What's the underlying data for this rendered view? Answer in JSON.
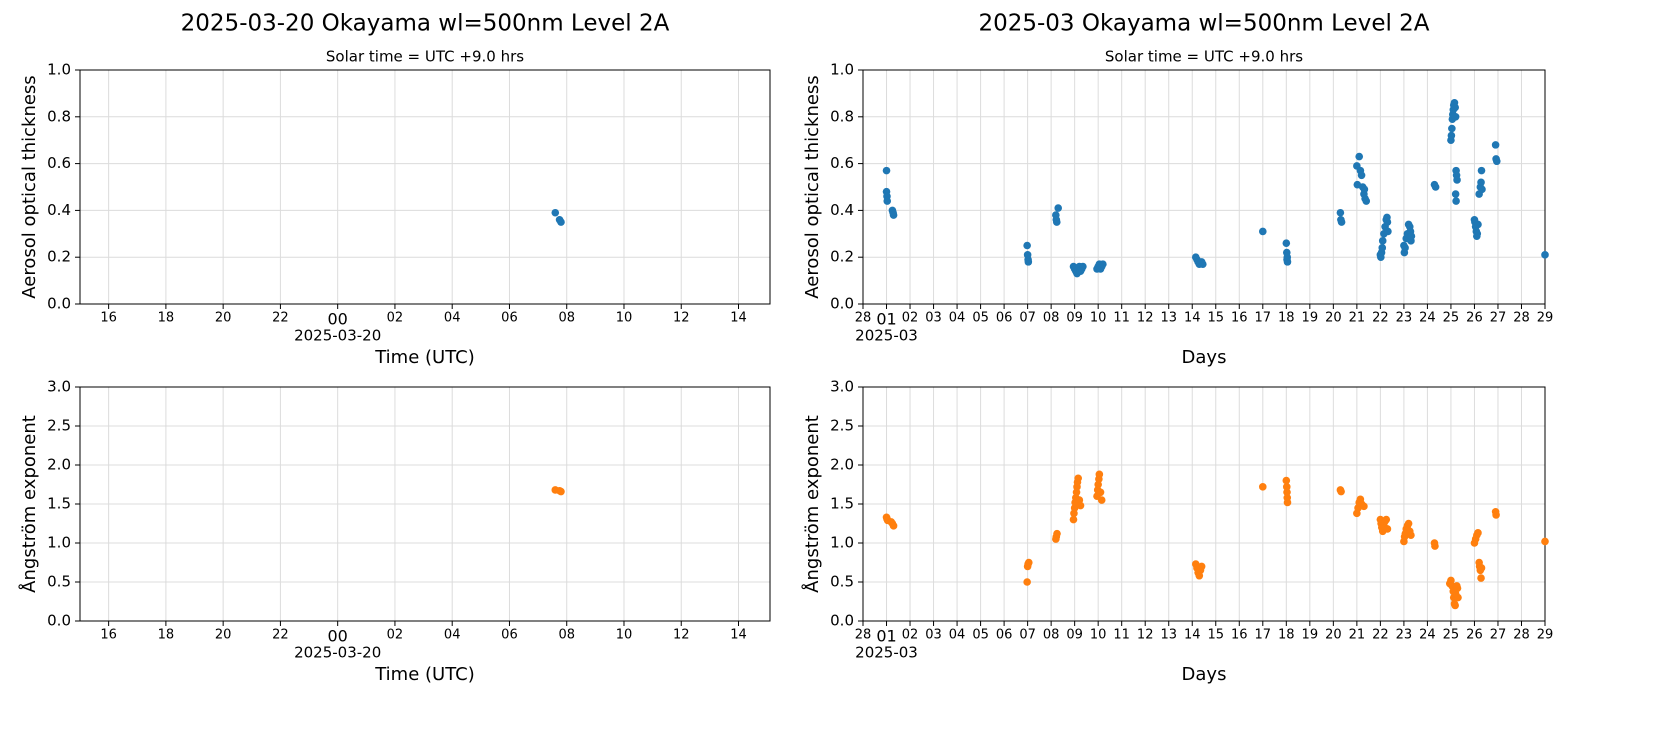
{
  "chart_data": [
    {
      "type": "scatter",
      "title": "2025-03-20  Okayama  wl=500nm  Level 2A",
      "subtitle": "Solar time = UTC +9.0 hrs",
      "ylabel": "Aerosol optical thickness",
      "xlabel": "Time (UTC)",
      "annotation": {
        "text": "2025-03-20",
        "x": 0
      },
      "color": "#1f77b4",
      "grid": true,
      "x": [
        7.6,
        7.75,
        7.8
      ],
      "values": [
        0.39,
        0.36,
        0.35
      ],
      "xlim": [
        -9,
        15.1
      ],
      "ylim": [
        0,
        1
      ],
      "xticks": [
        {
          "value": -8,
          "label": "16"
        },
        {
          "value": -6,
          "label": "18"
        },
        {
          "value": -4,
          "label": "20"
        },
        {
          "value": -2,
          "label": "22"
        },
        {
          "value": 0,
          "label": "00"
        },
        {
          "value": 2,
          "label": "02"
        },
        {
          "value": 4,
          "label": "04"
        },
        {
          "value": 6,
          "label": "06"
        },
        {
          "value": 8,
          "label": "08"
        },
        10,
        12,
        14
      ],
      "yticks": [
        {
          "value": 0,
          "label": "0.0"
        },
        0.2,
        0.4,
        0.6,
        0.8,
        {
          "value": 1,
          "label": "1.0"
        }
      ]
    },
    {
      "type": "scatter",
      "title": "2025-03  Okayama  wl=500nm  Level 2A",
      "subtitle": "Solar time = UTC +9.0 hrs",
      "ylabel": "Aerosol optical thickness",
      "xlabel": "Days",
      "annotation": {
        "text": "2025-03",
        "x": 1
      },
      "color": "#1f77b4",
      "grid": true,
      "x": [
        1.0,
        1.0,
        1.02,
        1.03,
        1.25,
        1.28,
        1.3,
        6.98,
        7.0,
        7.02,
        7.03,
        8.2,
        8.22,
        8.24,
        8.3,
        8.95,
        9.0,
        9.05,
        9.1,
        9.15,
        9.2,
        9.25,
        9.3,
        9.35,
        9.95,
        10.0,
        10.05,
        10.1,
        10.15,
        10.2,
        14.15,
        14.2,
        14.25,
        14.3,
        14.4,
        14.45,
        17.0,
        18.0,
        18.02,
        18.03,
        18.05,
        18.04,
        20.3,
        20.32,
        20.35,
        21.0,
        21.02,
        21.1,
        21.15,
        21.2,
        21.25,
        21.3,
        21.35,
        21.4,
        21.32,
        22.0,
        22.02,
        22.05,
        22.08,
        22.1,
        22.15,
        22.2,
        22.25,
        22.28,
        22.3,
        22.32,
        23.0,
        23.02,
        23.05,
        23.1,
        23.15,
        23.2,
        23.25,
        23.28,
        23.3,
        23.32,
        24.3,
        24.35,
        25.0,
        25.02,
        25.04,
        25.06,
        25.08,
        25.1,
        25.12,
        25.15,
        25.18,
        25.2,
        25.22,
        25.24,
        25.26,
        25.2,
        25.22,
        26.0,
        26.02,
        26.05,
        26.08,
        26.1,
        26.12,
        26.15,
        26.2,
        26.25,
        26.28,
        26.3,
        26.32,
        26.9,
        26.92,
        26.95,
        29.0
      ],
      "values": [
        0.57,
        0.48,
        0.46,
        0.44,
        0.4,
        0.39,
        0.38,
        0.25,
        0.21,
        0.19,
        0.18,
        0.38,
        0.36,
        0.35,
        0.41,
        0.16,
        0.15,
        0.14,
        0.13,
        0.15,
        0.16,
        0.14,
        0.15,
        0.16,
        0.15,
        0.16,
        0.17,
        0.15,
        0.16,
        0.17,
        0.2,
        0.19,
        0.18,
        0.17,
        0.18,
        0.17,
        0.31,
        0.26,
        0.22,
        0.19,
        0.18,
        0.2,
        0.39,
        0.36,
        0.35,
        0.59,
        0.51,
        0.63,
        0.57,
        0.55,
        0.5,
        0.47,
        0.45,
        0.44,
        0.49,
        0.21,
        0.2,
        0.22,
        0.24,
        0.27,
        0.3,
        0.33,
        0.36,
        0.37,
        0.35,
        0.31,
        0.25,
        0.22,
        0.24,
        0.28,
        0.3,
        0.34,
        0.33,
        0.31,
        0.27,
        0.29,
        0.51,
        0.5,
        0.7,
        0.72,
        0.75,
        0.79,
        0.81,
        0.83,
        0.85,
        0.86,
        0.84,
        0.8,
        0.57,
        0.55,
        0.53,
        0.47,
        0.44,
        0.36,
        0.35,
        0.33,
        0.31,
        0.29,
        0.3,
        0.34,
        0.47,
        0.5,
        0.52,
        0.57,
        0.49,
        0.68,
        0.62,
        0.61,
        0.21
      ],
      "xlim": [
        0,
        29
      ],
      "ylim": [
        0,
        1
      ],
      "xticks": [
        {
          "value": 0,
          "label": "28"
        },
        {
          "value": 1,
          "label": "01"
        },
        {
          "value": 2,
          "label": "02"
        },
        {
          "value": 3,
          "label": "03"
        },
        {
          "value": 4,
          "label": "04"
        },
        {
          "value": 5,
          "label": "05"
        },
        {
          "value": 6,
          "label": "06"
        },
        {
          "value": 7,
          "label": "07"
        },
        {
          "value": 8,
          "label": "08"
        },
        {
          "value": 9,
          "label": "09"
        },
        10,
        11,
        12,
        13,
        14,
        15,
        16,
        17,
        18,
        19,
        20,
        21,
        22,
        23,
        24,
        25,
        26,
        27,
        {
          "value": 28,
          "label": "28"
        },
        29
      ],
      "yticks": [
        {
          "value": 0,
          "label": "0.0"
        },
        0.2,
        0.4,
        0.6,
        0.8,
        {
          "value": 1,
          "label": "1.0"
        }
      ]
    },
    {
      "type": "scatter",
      "ylabel": "Ångström exponent",
      "xlabel": "Time (UTC)",
      "annotation": {
        "text": "2025-03-20",
        "x": 0
      },
      "color": "#ff7f0e",
      "grid": true,
      "x": [
        7.6,
        7.75,
        7.8
      ],
      "values": [
        1.68,
        1.67,
        1.66
      ],
      "xlim": [
        -9,
        15.1
      ],
      "ylim": [
        0,
        3
      ],
      "xticks": [
        {
          "value": -8,
          "label": "16"
        },
        {
          "value": -6,
          "label": "18"
        },
        {
          "value": -4,
          "label": "20"
        },
        {
          "value": -2,
          "label": "22"
        },
        {
          "value": 0,
          "label": "00"
        },
        {
          "value": 2,
          "label": "02"
        },
        {
          "value": 4,
          "label": "04"
        },
        {
          "value": 6,
          "label": "06"
        },
        {
          "value": 8,
          "label": "08"
        },
        10,
        12,
        14
      ],
      "yticks": [
        {
          "value": 0,
          "label": "0.0"
        },
        0.5,
        {
          "value": 1,
          "label": "1.0"
        },
        1.5,
        {
          "value": 2,
          "label": "2.0"
        },
        2.5,
        {
          "value": 3,
          "label": "3.0"
        }
      ]
    },
    {
      "type": "scatter",
      "ylabel": "Ångström exponent",
      "xlabel": "Days",
      "annotation": {
        "text": "2025-03",
        "x": 1
      },
      "color": "#ff7f0e",
      "grid": true,
      "x": [
        1.0,
        1.02,
        1.05,
        1.2,
        1.25,
        1.3,
        6.98,
        7.0,
        7.02,
        7.05,
        8.2,
        8.22,
        8.25,
        8.95,
        8.97,
        9.0,
        9.02,
        9.05,
        9.08,
        9.1,
        9.12,
        9.15,
        9.2,
        9.25,
        9.95,
        9.98,
        10.0,
        10.03,
        10.05,
        10.1,
        10.15,
        14.15,
        14.2,
        14.25,
        14.3,
        14.35,
        14.4,
        17.0,
        18.0,
        18.02,
        18.03,
        18.04,
        18.05,
        20.3,
        20.33,
        21.0,
        21.05,
        21.1,
        21.15,
        21.2,
        21.3,
        22.0,
        22.03,
        22.06,
        22.1,
        22.15,
        22.2,
        22.25,
        22.3,
        23.0,
        23.03,
        23.06,
        23.1,
        23.15,
        23.2,
        23.25,
        23.3,
        24.3,
        24.32,
        24.95,
        25.0,
        25.05,
        25.1,
        25.12,
        25.15,
        25.18,
        25.2,
        25.25,
        25.28,
        25.3,
        26.0,
        26.05,
        26.1,
        26.15,
        26.2,
        26.22,
        26.25,
        26.28,
        26.3,
        26.9,
        26.92,
        29.0
      ],
      "values": [
        1.33,
        1.31,
        1.29,
        1.27,
        1.25,
        1.22,
        0.5,
        0.7,
        0.73,
        0.75,
        1.05,
        1.08,
        1.12,
        1.3,
        1.38,
        1.45,
        1.52,
        1.58,
        1.65,
        1.72,
        1.78,
        1.83,
        1.55,
        1.48,
        1.6,
        1.68,
        1.75,
        1.82,
        1.88,
        1.65,
        1.55,
        0.73,
        0.68,
        0.62,
        0.58,
        0.65,
        0.7,
        1.72,
        1.8,
        1.72,
        1.65,
        1.58,
        1.52,
        1.68,
        1.66,
        1.38,
        1.45,
        1.52,
        1.56,
        1.5,
        1.47,
        1.3,
        1.25,
        1.2,
        1.15,
        1.22,
        1.28,
        1.3,
        1.18,
        1.02,
        1.08,
        1.12,
        1.18,
        1.22,
        1.25,
        1.15,
        1.1,
        1.0,
        0.96,
        0.48,
        0.52,
        0.45,
        0.38,
        0.3,
        0.22,
        0.2,
        0.35,
        0.45,
        0.42,
        0.3,
        1.0,
        1.05,
        1.1,
        1.13,
        0.75,
        0.7,
        0.65,
        0.55,
        0.68,
        1.4,
        1.36,
        1.02
      ],
      "xlim": [
        0,
        29
      ],
      "ylim": [
        0,
        3
      ],
      "xticks": [
        {
          "value": 0,
          "label": "28"
        },
        {
          "value": 1,
          "label": "01"
        },
        {
          "value": 2,
          "label": "02"
        },
        {
          "value": 3,
          "label": "03"
        },
        {
          "value": 4,
          "label": "04"
        },
        {
          "value": 5,
          "label": "05"
        },
        {
          "value": 6,
          "label": "06"
        },
        {
          "value": 7,
          "label": "07"
        },
        {
          "value": 8,
          "label": "08"
        },
        {
          "value": 9,
          "label": "09"
        },
        10,
        11,
        12,
        13,
        14,
        15,
        16,
        17,
        18,
        19,
        20,
        21,
        22,
        23,
        24,
        25,
        26,
        27,
        {
          "value": 28,
          "label": "28"
        },
        29
      ],
      "yticks": [
        {
          "value": 0,
          "label": "0.0"
        },
        0.5,
        {
          "value": 1,
          "label": "1.0"
        },
        1.5,
        {
          "value": 2,
          "label": "2.0"
        },
        2.5,
        {
          "value": 3,
          "label": "3.0"
        }
      ]
    }
  ]
}
